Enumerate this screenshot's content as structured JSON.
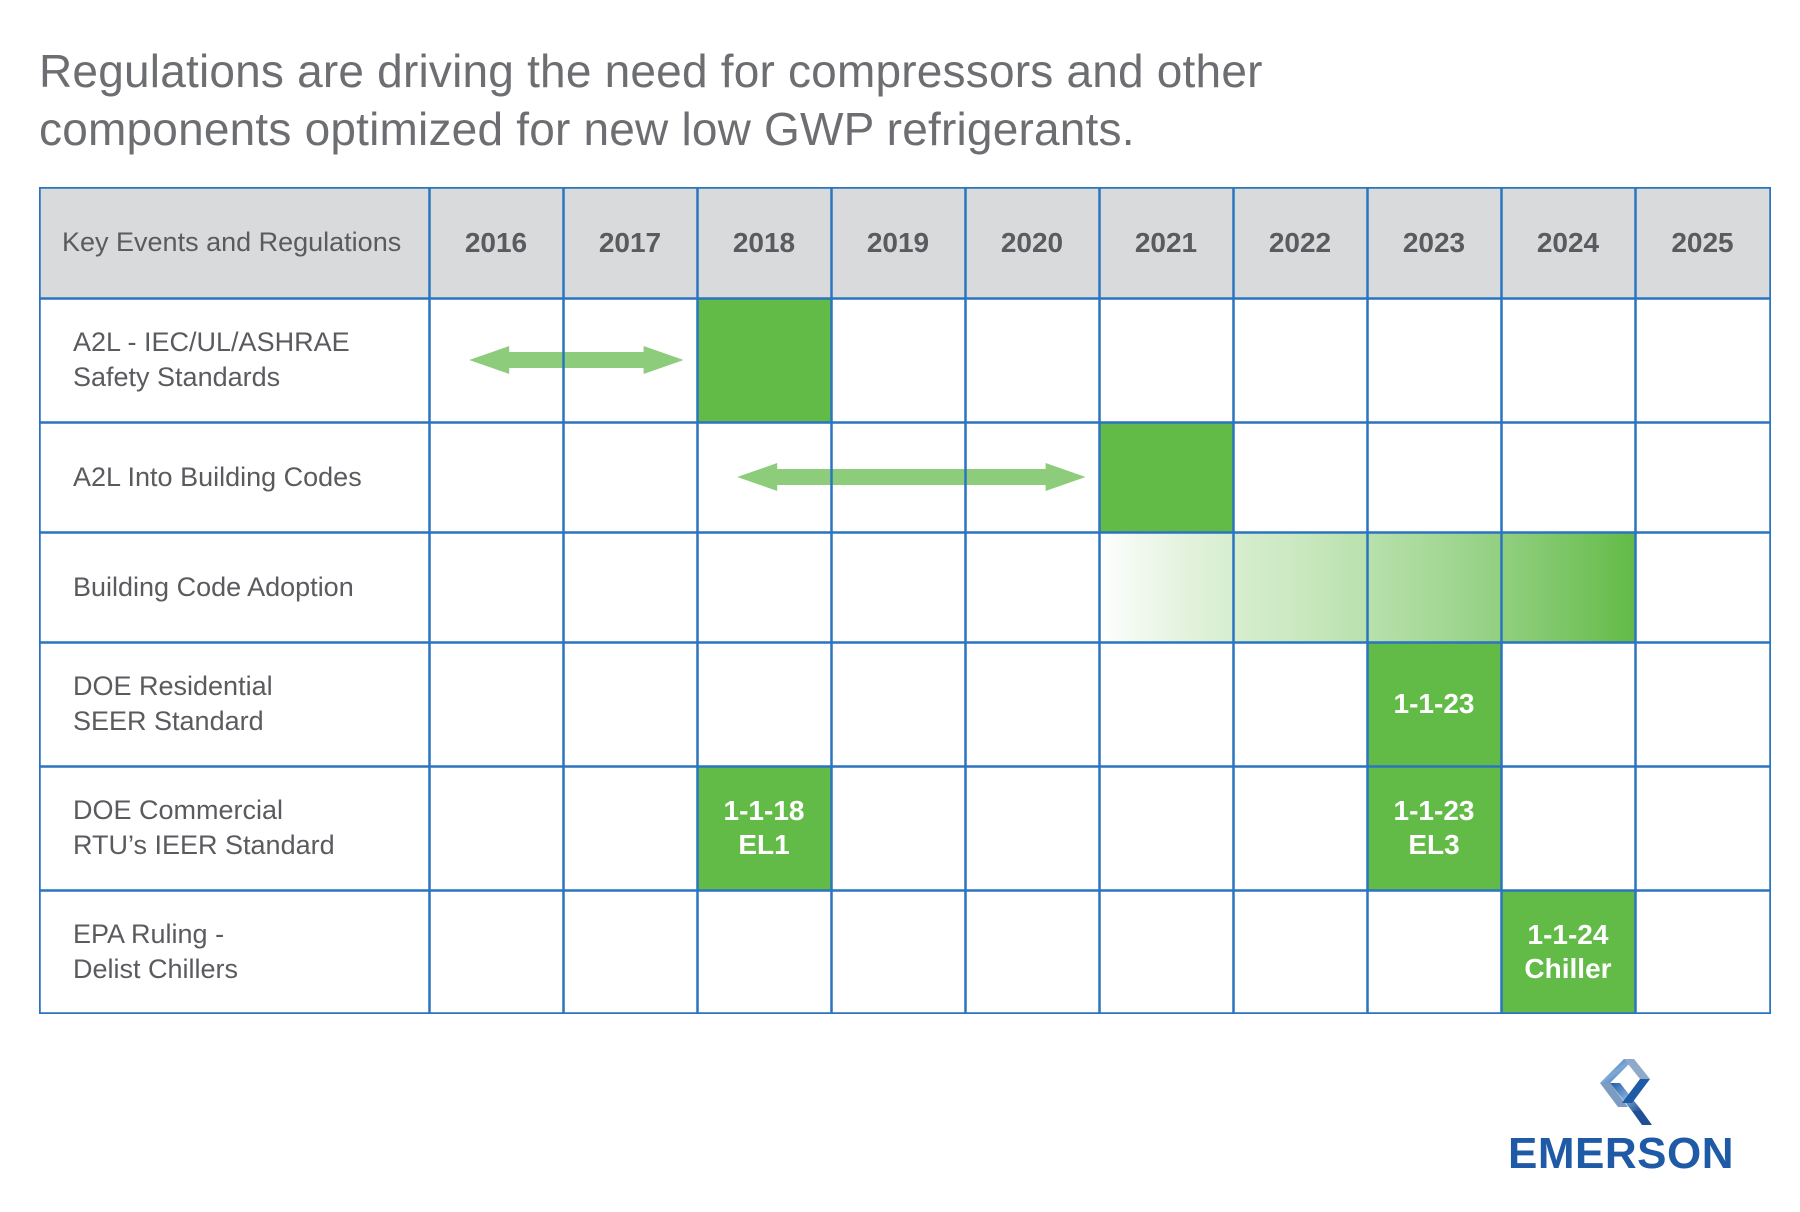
{
  "title": {
    "line1": "Regulations are driving the need for compressors and other",
    "line2": "components optimized for new low GWP refrigerants."
  },
  "table": {
    "header_label": "Key Events and Regulations",
    "years": [
      "2016",
      "2017",
      "2018",
      "2019",
      "2020",
      "2021",
      "2022",
      "2023",
      "2024",
      "2025"
    ],
    "rows": [
      {
        "label_lines": [
          "A2L - IEC/UL/ASHRAE",
          "Safety Standards"
        ]
      },
      {
        "label_lines": [
          "A2L Into Building Codes"
        ]
      },
      {
        "label_lines": [
          "Building Code Adoption"
        ]
      },
      {
        "label_lines": [
          "DOE Residential",
          "SEER Standard"
        ]
      },
      {
        "label_lines": [
          "DOE Commercial",
          "RTU’s IEER Standard"
        ]
      },
      {
        "label_lines": [
          "EPA Ruling -",
          "Delist Chillers"
        ]
      }
    ],
    "events": [
      {
        "row": 0,
        "year": "2018",
        "lines": []
      },
      {
        "row": 1,
        "year": "2021",
        "lines": []
      },
      {
        "row": 3,
        "year": "2023",
        "lines": [
          "1-1-23"
        ]
      },
      {
        "row": 4,
        "year": "2018",
        "lines": [
          "1-1-18",
          "EL1"
        ]
      },
      {
        "row": 4,
        "year": "2023",
        "lines": [
          "1-1-23",
          "EL3"
        ]
      },
      {
        "row": 5,
        "year": "2024",
        "lines": [
          "1-1-24",
          "Chiller"
        ]
      }
    ],
    "arrows": [
      {
        "row": 0,
        "from_year": 2016.3,
        "to_year": 2017.9
      },
      {
        "row": 1,
        "from_year": 2018.3,
        "to_year": 2020.9
      }
    ],
    "gradient_band": {
      "row": 2,
      "from_year": "2021",
      "to_year": "2024"
    }
  },
  "colors": {
    "grid_line": "#2b74c0",
    "header_fill": "#d9dadb",
    "event_green": "#62bb46",
    "arrow_green": "#8dcc7b",
    "title_gray": "#6d6e71",
    "label_gray": "#5a5b5e",
    "brand_blue": "#1f5aa6"
  },
  "logo": {
    "wordmark": "EMERSON",
    "icon": "emerson-chevron-logo-icon"
  }
}
